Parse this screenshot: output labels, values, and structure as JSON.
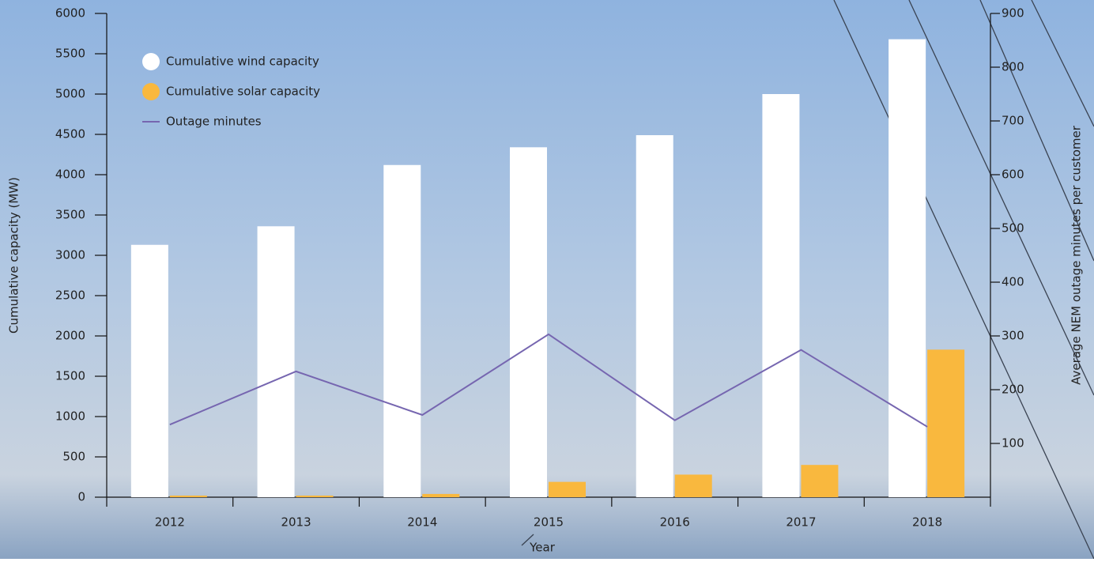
{
  "chart_data": {
    "type": "bar",
    "x_label": "Year",
    "y_label": "Cumulative capacity (MW)",
    "y2_label": "Average NEM outage minutes per customer",
    "categories": [
      "2012",
      "2013",
      "2014",
      "2015",
      "2016",
      "2017",
      "2018"
    ],
    "series": [
      {
        "name": "Cumulative wind capacity",
        "color": "#ffffff",
        "type": "bar",
        "values": [
          3130,
          3360,
          4120,
          4340,
          4490,
          5000,
          5680
        ]
      },
      {
        "name": "Cumulative solar capacity",
        "color": "#f9b83e",
        "type": "bar",
        "values": [
          20,
          20,
          40,
          190,
          280,
          400,
          1830
        ]
      },
      {
        "name": "Outage minutes",
        "color": "#7666b0",
        "type": "line",
        "axis": "y2",
        "values": [
          135,
          234,
          153,
          303,
          143,
          274,
          131
        ]
      }
    ],
    "ylim": [
      0,
      6000
    ],
    "yticks": [
      0,
      500,
      1000,
      1500,
      2000,
      2500,
      3000,
      3500,
      4000,
      4500,
      5000,
      5500,
      6000
    ],
    "y2lim": [
      0,
      900
    ],
    "y2ticks": [
      100,
      200,
      300,
      400,
      500,
      600,
      700,
      800,
      900
    ],
    "grid": false,
    "legend": "top-left"
  }
}
